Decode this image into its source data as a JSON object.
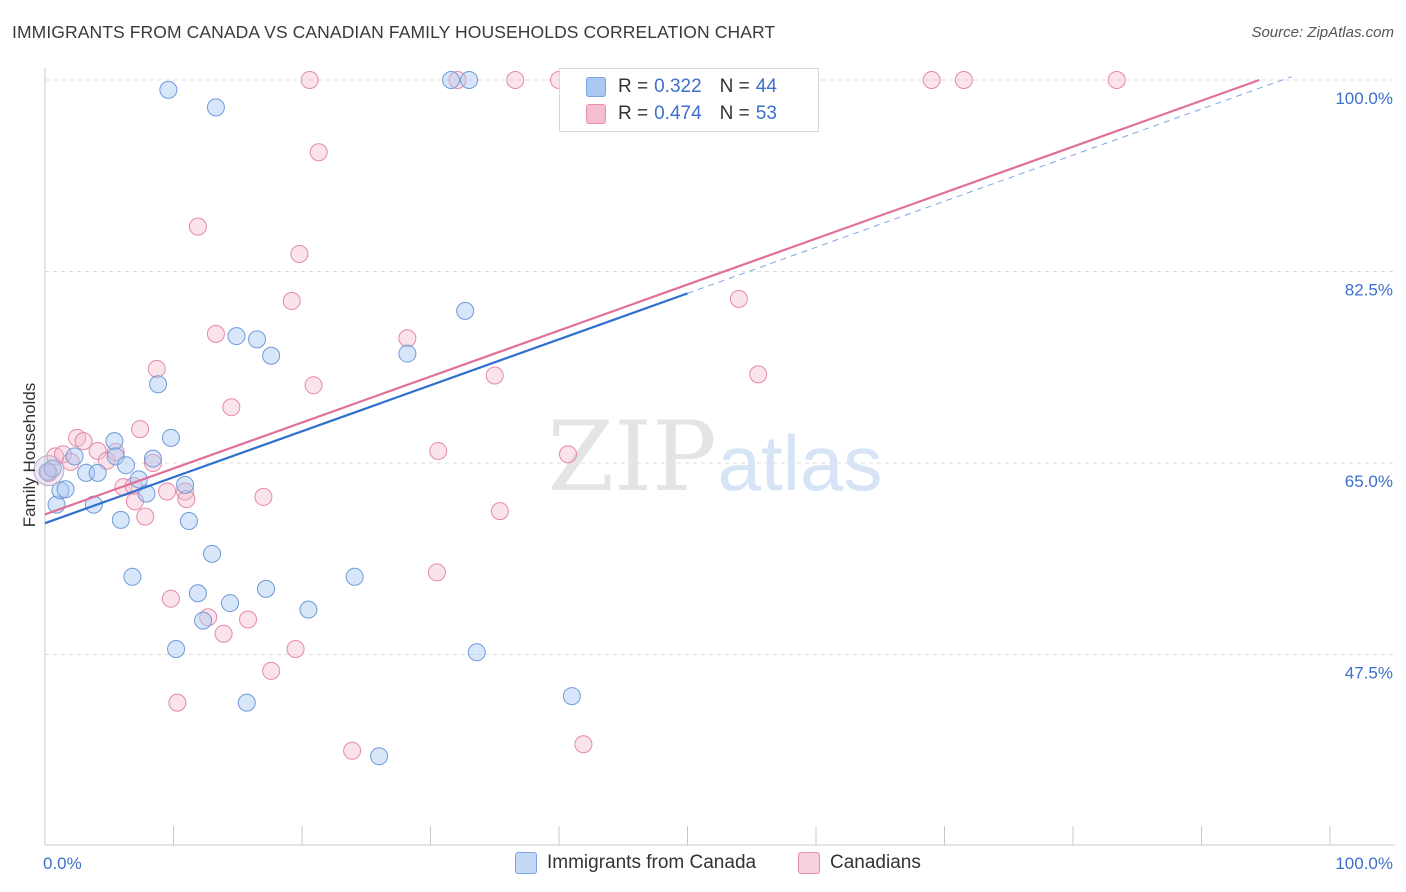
{
  "header": {
    "title": "IMMIGRANTS FROM CANADA VS CANADIAN FAMILY HOUSEHOLDS CORRELATION CHART",
    "source": "Source: ZipAtlas.com"
  },
  "watermark": {
    "zip": "ZIP",
    "atlas": "atlas"
  },
  "legend": {
    "rows": [
      {
        "r_label": "R = ",
        "r_value": "0.322",
        "n_label": "N = ",
        "n_value": "44",
        "color": "#a9c8f2",
        "border": "#7aa6e0"
      },
      {
        "r_label": "R = ",
        "r_value": "0.474",
        "n_label": "N = ",
        "n_value": "53",
        "color": "#f6bfd0",
        "border": "#e98fae"
      }
    ]
  },
  "bottom_legend": [
    {
      "label": "Immigrants from Canada",
      "color": "#c4d9f5",
      "border": "#7aa6e0"
    },
    {
      "label": "Canadians",
      "color": "#f9d0dd",
      "border": "#e98fae"
    }
  ],
  "colors": {
    "blue_fill": "rgba(169,200,242,0.45)",
    "blue_stroke": "#6f9ad8",
    "blue_line": "#2f6fd0",
    "pink_fill": "rgba(246,185,205,0.40)",
    "pink_stroke": "#e48aa9",
    "pink_line": "#e0709a",
    "grid": "#dcdcdc",
    "axis_text": "#3d6fcf"
  },
  "chart_data": {
    "type": "scatter",
    "title": "IMMIGRANTS FROM CANADA VS CANADIAN FAMILY HOUSEHOLDS CORRELATION CHART",
    "xlabel": "",
    "ylabel": "Family Households",
    "xlim": [
      0,
      100
    ],
    "ylim": [
      33,
      101.5
    ],
    "x_tick_labels": [
      {
        "value": 0,
        "label": "0.0%"
      },
      {
        "value": 100,
        "label": "100.0%"
      }
    ],
    "y_ticks": [
      {
        "value": 100,
        "label": "100.0%"
      },
      {
        "value": 82.5,
        "label": "82.5%"
      },
      {
        "value": 65,
        "label": "65.0%"
      },
      {
        "value": 47.5,
        "label": "47.5%"
      }
    ],
    "grid": true,
    "series": [
      {
        "name": "Immigrants from Canada",
        "color": "blue",
        "trend": {
          "x0": 0,
          "y0": 59.5,
          "x1": 50,
          "y1": 80.5,
          "dashed_to_x": 97,
          "dashed_to_y": 100.3
        },
        "points": [
          [
            0.2,
            64.2
          ],
          [
            0.6,
            64.5
          ],
          [
            0.9,
            61.2
          ],
          [
            1.2,
            62.5
          ],
          [
            1.6,
            62.6
          ],
          [
            2.3,
            65.6
          ],
          [
            3.2,
            64.1
          ],
          [
            3.8,
            61.2
          ],
          [
            4.1,
            64.1
          ],
          [
            5.4,
            67.0
          ],
          [
            5.5,
            65.6
          ],
          [
            5.9,
            59.8
          ],
          [
            6.3,
            64.8
          ],
          [
            6.8,
            54.6
          ],
          [
            7.3,
            63.5
          ],
          [
            7.9,
            62.2
          ],
          [
            8.4,
            65.4
          ],
          [
            8.8,
            72.2
          ],
          [
            9.6,
            99.1
          ],
          [
            9.8,
            67.3
          ],
          [
            10.2,
            48.0
          ],
          [
            10.9,
            63.0
          ],
          [
            11.2,
            59.7
          ],
          [
            11.9,
            53.1
          ],
          [
            12.3,
            50.6
          ],
          [
            13.0,
            56.7
          ],
          [
            13.3,
            97.5
          ],
          [
            14.4,
            52.2
          ],
          [
            14.9,
            76.6
          ],
          [
            15.7,
            43.1
          ],
          [
            16.5,
            76.3
          ],
          [
            17.2,
            53.5
          ],
          [
            17.6,
            74.8
          ],
          [
            20.5,
            51.6
          ],
          [
            24.1,
            54.6
          ],
          [
            26.0,
            38.2
          ],
          [
            28.2,
            75.0
          ],
          [
            31.6,
            100.0
          ],
          [
            32.7,
            78.9
          ],
          [
            33.0,
            100.0
          ],
          [
            33.6,
            47.7
          ],
          [
            41.0,
            43.7
          ],
          [
            49.2,
            100.0
          ],
          [
            50.5,
            100.0
          ]
        ]
      },
      {
        "name": "Canadians",
        "color": "pink",
        "trend": {
          "x0": 0,
          "y0": 60.3,
          "x1": 94.5,
          "y1": 100.0
        },
        "points": [
          [
            0.3,
            64.1
          ],
          [
            0.8,
            65.6
          ],
          [
            1.4,
            65.8
          ],
          [
            2.0,
            65.1
          ],
          [
            2.5,
            67.3
          ],
          [
            3.0,
            67.0
          ],
          [
            4.1,
            66.1
          ],
          [
            4.8,
            65.2
          ],
          [
            5.5,
            66.0
          ],
          [
            6.1,
            62.8
          ],
          [
            6.9,
            62.9
          ],
          [
            7.0,
            61.5
          ],
          [
            7.4,
            68.1
          ],
          [
            7.8,
            60.1
          ],
          [
            8.4,
            65.0
          ],
          [
            8.7,
            73.6
          ],
          [
            9.5,
            62.4
          ],
          [
            9.8,
            52.6
          ],
          [
            10.3,
            43.1
          ],
          [
            10.9,
            62.4
          ],
          [
            11.0,
            61.7
          ],
          [
            11.9,
            86.6
          ],
          [
            12.7,
            50.9
          ],
          [
            13.3,
            76.8
          ],
          [
            13.9,
            49.4
          ],
          [
            14.5,
            70.1
          ],
          [
            15.8,
            50.7
          ],
          [
            17.0,
            61.9
          ],
          [
            17.6,
            46.0
          ],
          [
            19.2,
            79.8
          ],
          [
            19.5,
            48.0
          ],
          [
            19.8,
            84.1
          ],
          [
            20.6,
            100.0
          ],
          [
            20.9,
            72.1
          ],
          [
            21.3,
            93.4
          ],
          [
            23.9,
            38.7
          ],
          [
            28.2,
            76.4
          ],
          [
            30.5,
            55.0
          ],
          [
            30.6,
            66.1
          ],
          [
            32.1,
            100.0
          ],
          [
            35.0,
            73.0
          ],
          [
            35.4,
            60.6
          ],
          [
            36.6,
            100.0
          ],
          [
            40.0,
            100.0
          ],
          [
            40.7,
            65.8
          ],
          [
            41.9,
            39.3
          ],
          [
            54.0,
            80.0
          ],
          [
            55.5,
            73.1
          ],
          [
            56.9,
            100.0
          ],
          [
            58.0,
            100.0
          ],
          [
            69.0,
            100.0
          ],
          [
            71.5,
            100.0
          ],
          [
            83.4,
            100.0
          ]
        ]
      }
    ]
  }
}
